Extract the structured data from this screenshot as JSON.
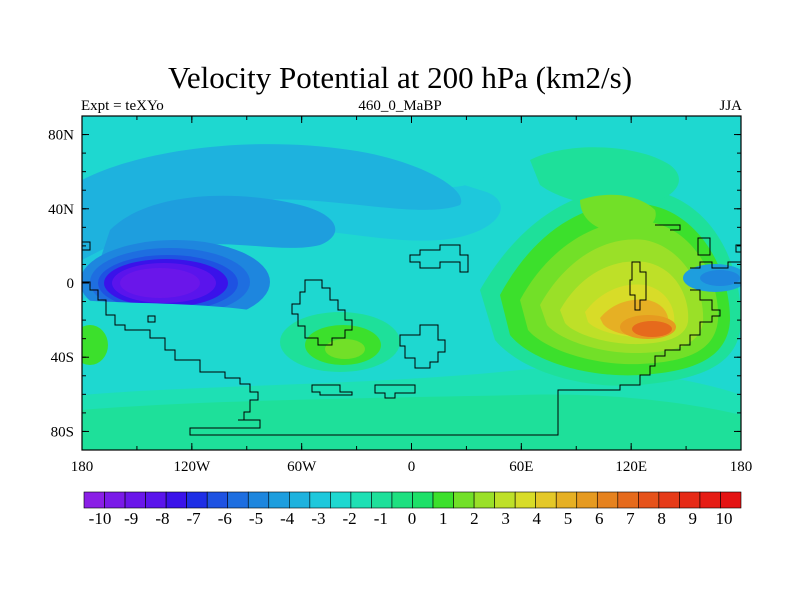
{
  "title": "Velocity Potential at 200 hPa (km2/s)",
  "left_string": "Expt = teXYo",
  "center_string": "460_0_MaBP",
  "right_string": "JJA",
  "x_ticks": [
    "180",
    "120W",
    "60W",
    "0",
    "60E",
    "120E",
    "180"
  ],
  "y_ticks": [
    "80N",
    "40N",
    "0",
    "40S",
    "80S"
  ],
  "colorbar": {
    "labels": [
      "-10",
      "-9",
      "-8",
      "-7",
      "-6",
      "-5",
      "-4",
      "-3",
      "-2",
      "-1",
      "0",
      "1",
      "2",
      "3",
      "4",
      "5",
      "6",
      "7",
      "8",
      "9",
      "10"
    ],
    "colors": [
      "#8a1fe6",
      "#7a1ae8",
      "#6a16ea",
      "#5a14ec",
      "#3a12ea",
      "#1e2ee6",
      "#1e52e2",
      "#1e6ee0",
      "#1e86de",
      "#1e9ede",
      "#1eb2de",
      "#1ec8dc",
      "#1ed8d0",
      "#1ee0b4",
      "#1ee09a",
      "#1ee080",
      "#1ee068",
      "#3ce02c",
      "#72e028",
      "#9ae028",
      "#bee028",
      "#d8dc28",
      "#e4c828",
      "#e6b024",
      "#e69a20",
      "#e6821e",
      "#e66a1c",
      "#e6521a",
      "#e63a18",
      "#e62a16",
      "#e61c14",
      "#e41212"
    ]
  },
  "chart_data": {
    "type": "heatmap",
    "title": "Velocity Potential at 200 hPa (km2/s)",
    "units": "km2/s",
    "season": "JJA",
    "experiment": "teXYo",
    "period": "460_0_MaBP",
    "lon_range": [
      -180,
      180
    ],
    "lat_range": [
      -90,
      90
    ],
    "contour_range": [
      -10,
      10
    ],
    "contour_interval": 0.5,
    "field_features": [
      {
        "lon": -135,
        "lat": 2,
        "value": -9.5
      },
      {
        "lon": -120,
        "lat": 35,
        "value": -5
      },
      {
        "lon": -40,
        "lat": 50,
        "value": -3
      },
      {
        "lon": 135,
        "lat": -22,
        "value": 9
      },
      {
        "lon": 115,
        "lat": 10,
        "value": 6
      },
      {
        "lon": 80,
        "lat": 50,
        "value": 3
      },
      {
        "lon": -40,
        "lat": -33,
        "value": 3
      },
      {
        "lon": 30,
        "lat": -45,
        "value": 0
      },
      {
        "lon": -165,
        "lat": -40,
        "value": 1
      },
      {
        "lon": 160,
        "lat": 5,
        "value": -3
      }
    ]
  }
}
